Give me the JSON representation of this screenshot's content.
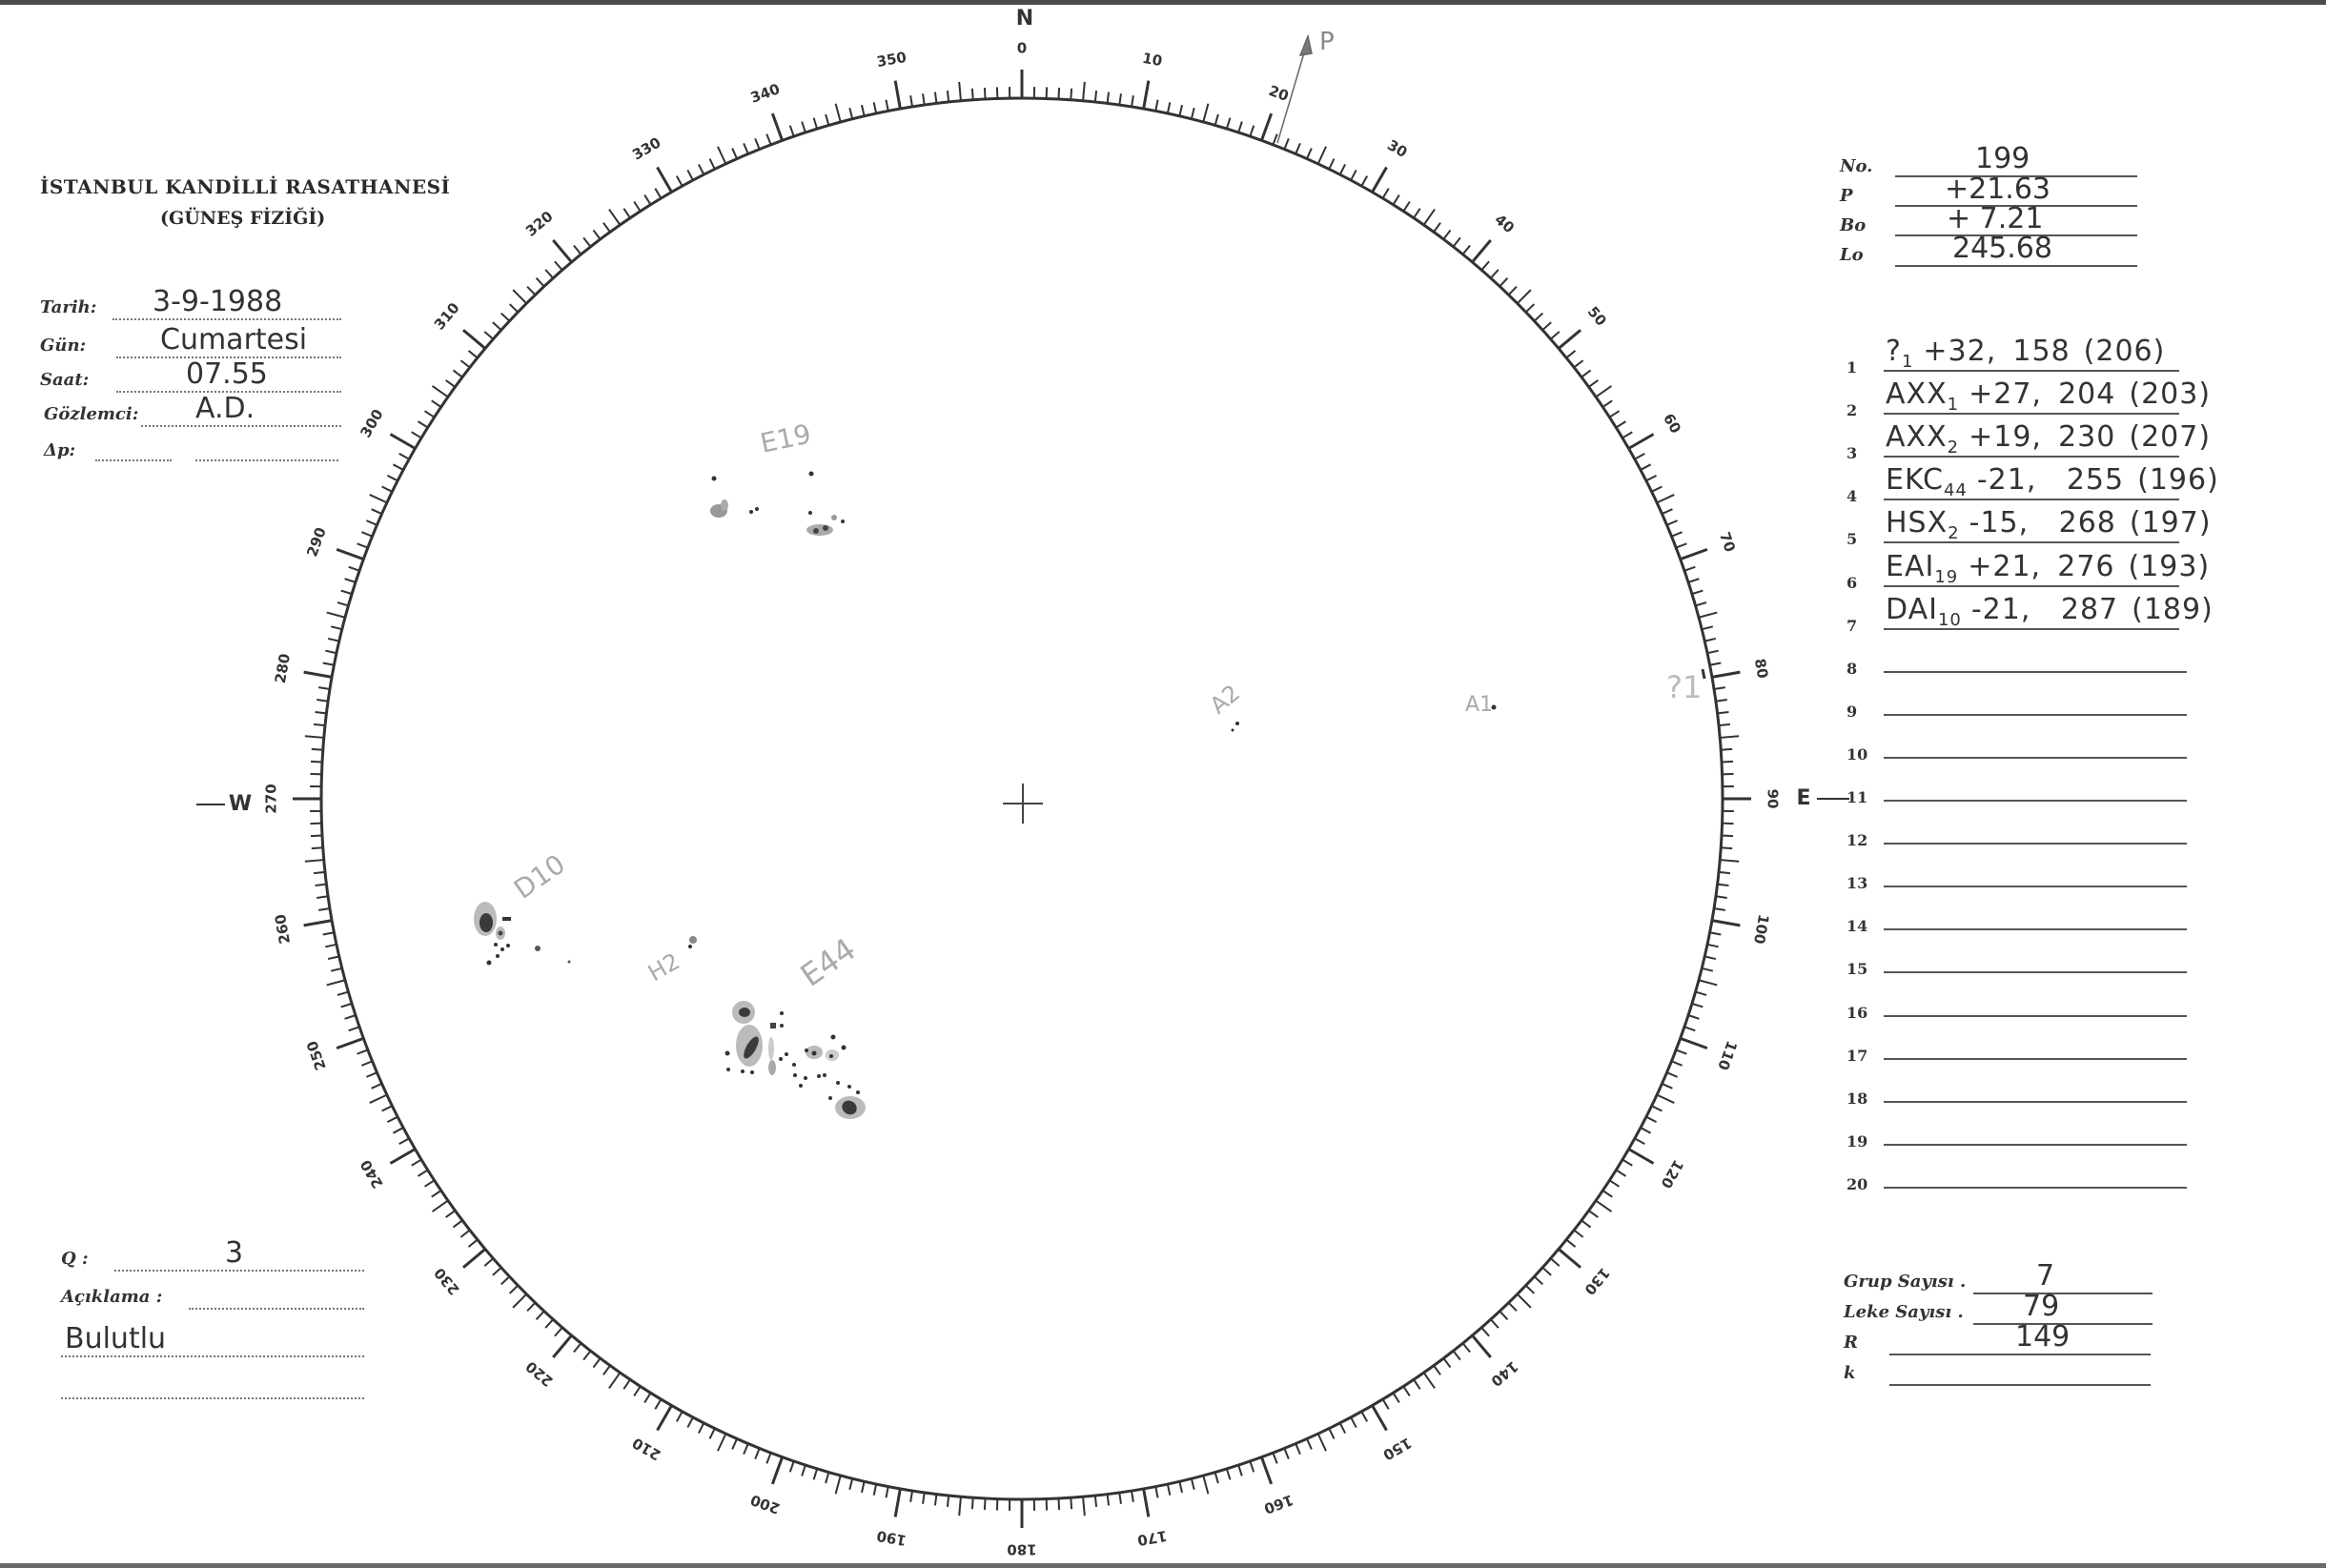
{
  "header": {
    "title": "İSTANBUL KANDİLLİ RASATHANESİ",
    "subtitle": "(GÜNEŞ FİZİĞİ)"
  },
  "observation": {
    "date_label": "Tarih:",
    "date_value": "3-9-1988",
    "day_label": "Gün:",
    "day_value": "Cumartesi",
    "time_label": "Saat:",
    "time_value": "07.55",
    "observer_label": "Gözlemci:",
    "observer_value": "A.D.",
    "delta_p_label": "Δp:",
    "delta_p_value": ""
  },
  "ephemeris": {
    "no_label": "No.",
    "no_value": "199",
    "p_label": "P",
    "p_value": "+21.63",
    "bo_label": "Bo",
    "bo_value": "+ 7.21",
    "lo_label": "Lo",
    "lo_value": "245.68"
  },
  "groups": [
    {
      "n": "1",
      "cls": "?",
      "sub": "1",
      "lat": "+32,",
      "lon": "158",
      "cm": "(206)"
    },
    {
      "n": "2",
      "cls": "AXX",
      "sub": "1",
      "lat": "+27,",
      "lon": "204",
      "cm": "(203)"
    },
    {
      "n": "3",
      "cls": "AXX",
      "sub": "2",
      "lat": "+19,",
      "lon": "230",
      "cm": "(207)"
    },
    {
      "n": "4",
      "cls": "EKC",
      "sub": "44",
      "lat": "-21,",
      "lon": "255",
      "cm": "(196)"
    },
    {
      "n": "5",
      "cls": "HSX",
      "sub": "2",
      "lat": "-15,",
      "lon": "268",
      "cm": "(197)"
    },
    {
      "n": "6",
      "cls": "EAI",
      "sub": "19",
      "lat": "+21,",
      "lon": "276",
      "cm": "(193)"
    },
    {
      "n": "7",
      "cls": "DAI",
      "sub": "10",
      "lat": "-21,",
      "lon": "287",
      "cm": "(189)"
    },
    {
      "n": "8"
    },
    {
      "n": "9"
    },
    {
      "n": "10"
    },
    {
      "n": "11"
    },
    {
      "n": "12"
    },
    {
      "n": "13"
    },
    {
      "n": "14"
    },
    {
      "n": "15"
    },
    {
      "n": "16"
    },
    {
      "n": "17"
    },
    {
      "n": "18"
    },
    {
      "n": "19"
    },
    {
      "n": "20"
    }
  ],
  "summary": {
    "group_count_label": "Grup Sayısı .",
    "group_count_value": "7",
    "spot_count_label": "Leke Sayısı .",
    "spot_count_value": "79",
    "r_label": "R",
    "r_value": "149",
    "k_label": "k",
    "k_value": ""
  },
  "notes": {
    "q_label": "Q :",
    "q_value": "3",
    "remark_label": "Açıklama :",
    "remark_value": "Bulutlu"
  },
  "disk": {
    "north_label": "N",
    "east_label": "E",
    "west_label": "W",
    "p_axis_label": "P",
    "p_angle_deg": 21.63,
    "scale_step_deg": 10,
    "group_labels": {
      "e19": "E19",
      "d10": "D10",
      "h2": "H2",
      "e44": "E44",
      "a2": "A2",
      "a1": "A1",
      "q1": "?1"
    }
  },
  "colors": {
    "ink": "#2a2a2a",
    "penumbra": "#b8b8b8",
    "umbra": "#3a3a3a",
    "pencil": "#9a9a9a"
  }
}
